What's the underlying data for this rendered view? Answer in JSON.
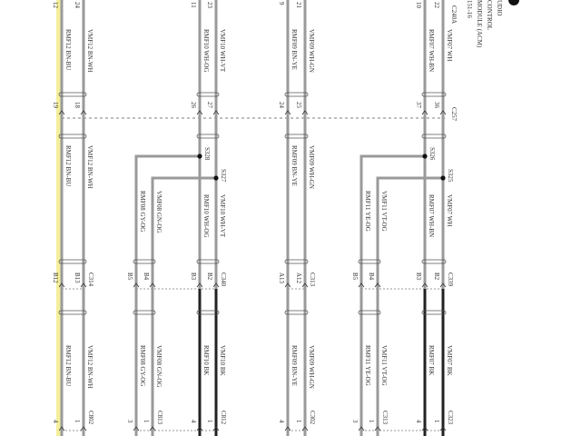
{
  "module_title": [
    "UDIO",
    "CONTROL",
    "MODULE (ACM)",
    "151-16"
  ],
  "highlight_color": "#f4ef9c",
  "wire_color": "#9a9a9a",
  "wire_black": "#222222",
  "connectors": {
    "top": "C240A",
    "mid": "C257",
    "lower": [
      "C314",
      "C340",
      "C313",
      "C339"
    ],
    "bottom": [
      "C802",
      "C813",
      "C812",
      "C302",
      "C313",
      "C323"
    ]
  },
  "splices": [
    "S328",
    "S327",
    "S326",
    "S325"
  ],
  "wires": [
    {
      "top_label": "RMF12  BN-BU",
      "mid_label": "RMF12  BN-BU",
      "bottom_label": "RMF12  BN-BU",
      "top_pin": "12",
      "mid_pin": "19",
      "lower_pin": "B12",
      "bottom_pin": "4",
      "bottom_black": false
    },
    {
      "top_label": "VMF12  BN-WH",
      "mid_label": "VMF12  BN-WH",
      "bottom_label": "VMF12  BN-WH",
      "top_pin": "24",
      "mid_pin": "18",
      "lower_pin": "B13",
      "bottom_pin": "1",
      "bottom_black": false
    },
    {
      "top_label": "",
      "mid_label": "RMF08  GY-OG",
      "bottom_label": "RMF08  GY-OG",
      "top_pin": "",
      "mid_pin": "",
      "lower_pin": "B5",
      "bottom_pin": "3",
      "bottom_black": false
    },
    {
      "top_label": "",
      "mid_label": "VMF08  GN-OG",
      "bottom_label": "VMF08  GN-OG",
      "top_pin": "",
      "mid_pin": "",
      "lower_pin": "B4",
      "bottom_pin": "1",
      "bottom_black": false
    },
    {
      "top_label": "RMF10  WH-OG",
      "mid_label": "RMF10  WH-OG",
      "bottom_label": "RMF10  BK",
      "top_pin": "11",
      "mid_pin": "26",
      "lower_pin": "B3",
      "bottom_pin": "4",
      "bottom_black": true
    },
    {
      "top_label": "VMF10  WH-VT",
      "mid_label": "VMF10  WH-VT",
      "bottom_label": "VMF10  BK",
      "top_pin": "23",
      "mid_pin": "27",
      "lower_pin": "B2",
      "bottom_pin": "1",
      "bottom_black": true
    },
    {
      "top_label": "RMF09  BN-YE",
      "mid_label": "RMF09  BN-YE",
      "bottom_label": "RMF09  BN-YE",
      "top_pin": "9",
      "mid_pin": "24",
      "lower_pin": "A13",
      "bottom_pin": "4",
      "bottom_black": false
    },
    {
      "top_label": "VMF09  WH-GN",
      "mid_label": "VMF09  WH-GN",
      "bottom_label": "VMF09  WH-GN",
      "top_pin": "21",
      "mid_pin": "25",
      "lower_pin": "A12",
      "bottom_pin": "1",
      "bottom_black": false
    },
    {
      "top_label": "",
      "mid_label": "RMF11  YE-OG",
      "bottom_label": "RMF11  YE-OG",
      "top_pin": "",
      "mid_pin": "",
      "lower_pin": "B5",
      "bottom_pin": "3",
      "bottom_black": false
    },
    {
      "top_label": "",
      "mid_label": "VMF11  VT-OG",
      "bottom_label": "VMF11  VT-OG",
      "top_pin": "",
      "mid_pin": "",
      "lower_pin": "B4",
      "bottom_pin": "1",
      "bottom_black": false
    },
    {
      "top_label": "RMF07  WH-BN",
      "mid_label": "RMF07  WH-BN",
      "bottom_label": "RMF07  BK",
      "top_pin": "10",
      "mid_pin": "37",
      "lower_pin": "B3",
      "bottom_pin": "4",
      "bottom_black": true
    },
    {
      "top_label": "VMF07  WH",
      "mid_label": "VMF07  WH",
      "bottom_label": "VMF07  BK",
      "top_pin": "22",
      "mid_pin": "36",
      "lower_pin": "B2",
      "bottom_pin": "1",
      "bottom_black": true
    }
  ]
}
